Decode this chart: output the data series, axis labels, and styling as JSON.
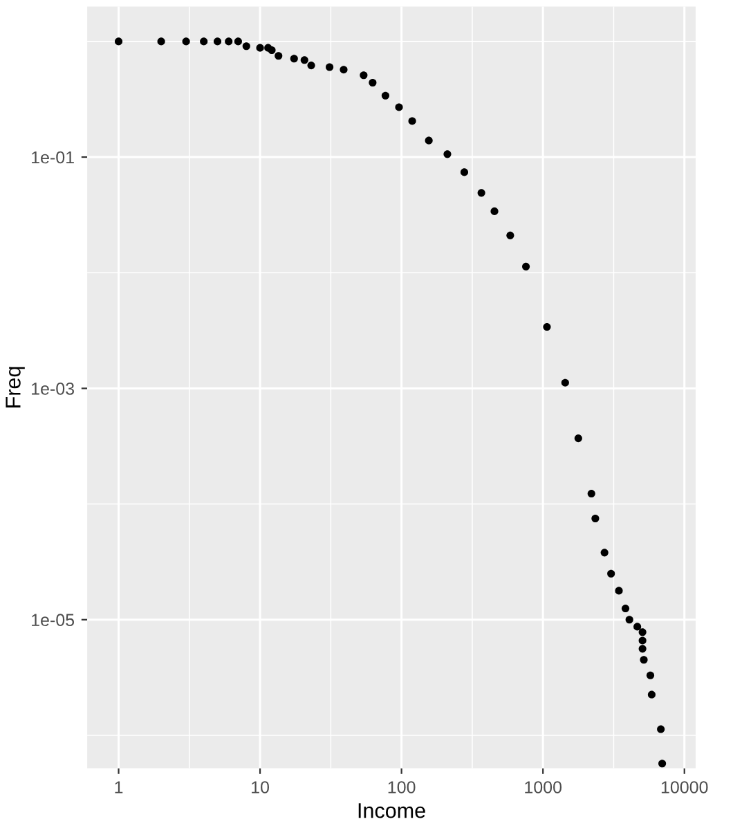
{
  "chart_data": {
    "type": "scatter",
    "xlabel": "Income",
    "ylabel": "Freq",
    "log": "xy",
    "grid": true,
    "marker": "circle",
    "xlim": [
      0.6,
      12000
    ],
    "ylim": [
      5.2e-07,
      2.0
    ],
    "xticks": [
      1,
      10,
      100,
      1000,
      10000
    ],
    "yticks": [
      {
        "value": 0.1,
        "label": "1e-01"
      },
      {
        "value": 0.001,
        "label": "1e-03"
      },
      {
        "value": 1e-05,
        "label": "1e-05"
      }
    ],
    "series": [
      {
        "color": "#000000",
        "x": [
          1,
          2,
          3,
          4,
          5,
          6,
          7,
          8,
          10,
          11.4,
          12.1,
          13.5,
          17.4,
          20.6,
          23,
          31,
          39,
          54,
          62.5,
          77,
          96,
          119,
          156,
          211,
          278,
          367,
          454,
          587,
          758,
          1067,
          1436,
          1778,
          2200,
          2345,
          2723,
          3030,
          3443,
          3831,
          4083,
          4645,
          5055,
          5055,
          5055,
          5164,
          5745,
          5870,
          6813,
          6964
        ],
        "values": [
          1,
          1,
          1,
          1,
          1,
          1,
          1,
          0.91,
          0.88,
          0.88,
          0.84,
          0.75,
          0.71,
          0.69,
          0.62,
          0.6,
          0.57,
          0.51,
          0.44,
          0.34,
          0.27,
          0.205,
          0.139,
          0.106,
          0.074,
          0.049,
          0.034,
          0.021,
          0.0113,
          0.0034,
          0.00112,
          0.00037,
          0.000123,
          7.5e-05,
          3.8e-05,
          2.5e-05,
          1.78e-05,
          1.25e-05,
          1e-05,
          8.7e-06,
          7.8e-06,
          6.6e-06,
          5.6e-06,
          4.5e-06,
          3.3e-06,
          2.25e-06,
          1.13e-06,
          5.7e-07
        ]
      }
    ]
  }
}
